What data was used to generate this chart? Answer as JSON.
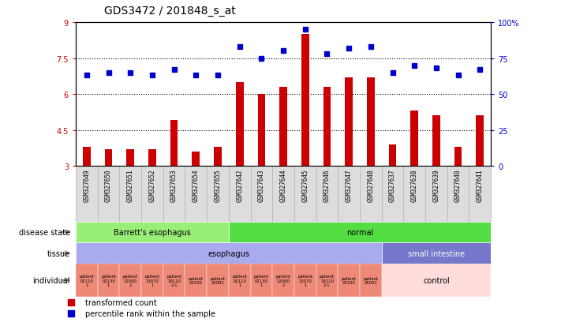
{
  "title": "GDS3472 / 201848_s_at",
  "samples": [
    "GSM327649",
    "GSM327650",
    "GSM327651",
    "GSM327652",
    "GSM327653",
    "GSM327654",
    "GSM327655",
    "GSM327642",
    "GSM327643",
    "GSM327644",
    "GSM327645",
    "GSM327646",
    "GSM327647",
    "GSM327648",
    "GSM327637",
    "GSM327638",
    "GSM327639",
    "GSM327640",
    "GSM327641"
  ],
  "bar_values": [
    3.8,
    3.7,
    3.7,
    3.7,
    4.9,
    3.6,
    3.8,
    6.5,
    6.0,
    6.3,
    8.5,
    6.3,
    6.7,
    6.7,
    3.9,
    5.3,
    5.1,
    3.8,
    5.1
  ],
  "dot_values": [
    63,
    65,
    65,
    63,
    67,
    63,
    63,
    83,
    75,
    80,
    95,
    78,
    82,
    83,
    65,
    70,
    68,
    63,
    67
  ],
  "ylim_left": [
    3,
    9
  ],
  "ylim_right": [
    0,
    100
  ],
  "yticks_left": [
    3,
    4.5,
    6,
    7.5,
    9
  ],
  "yticks_right": [
    0,
    25,
    50,
    75,
    100
  ],
  "bar_color": "#cc0000",
  "dot_color": "#0000cc",
  "disease_be_color": "#99ee77",
  "disease_normal_color": "#55dd44",
  "tissue_esoph_color": "#aaaaee",
  "tissue_si_color": "#7777cc",
  "indiv_esoph_color": "#ee8877",
  "indiv_ctrl_color": "#ffdddd",
  "grid_lines": [
    4.5,
    6.0,
    7.5
  ],
  "sample_label_bg": "#dddddd",
  "indiv_labels": [
    "patient\n02110\n1",
    "patient\n02130\n1",
    "patient\n12090\n2",
    "patient\n13070\n1",
    "patient\n19110\n2-1",
    "patient\n23100",
    "patient\n25091",
    "patient\n02110\n1",
    "patient\n02130\n1",
    "patient\n12090\n2",
    "patient\n13070\n1",
    "patient\n19110\n2-1",
    "patient\n23100",
    "patient\n25091"
  ]
}
